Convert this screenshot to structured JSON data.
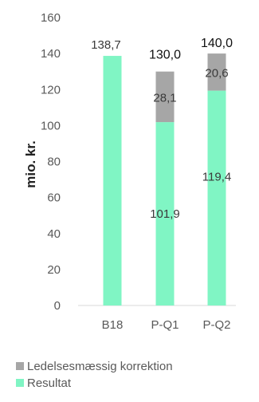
{
  "chart_data": {
    "type": "bar",
    "stacked": true,
    "categories": [
      "B18",
      "P-Q1",
      "P-Q2"
    ],
    "series": [
      {
        "name": "Resultat",
        "color": "#80f5c4",
        "values": [
          138.7,
          101.9,
          119.4
        ],
        "labels": [
          "138,7",
          "101,9",
          "119,4"
        ]
      },
      {
        "name": "Ledelsesmæssig korrektion",
        "color": "#a6a6a6",
        "values": [
          0,
          28.1,
          20.6
        ],
        "labels": [
          "",
          "28,1",
          "20,6"
        ]
      }
    ],
    "totals": [
      null,
      130.0,
      140.0
    ],
    "total_labels": [
      "",
      "130,0",
      "140,0"
    ],
    "title": "",
    "xlabel": "",
    "ylabel": "mio. kr.",
    "ylim": [
      0,
      160
    ],
    "yticks": [
      0,
      20,
      40,
      60,
      80,
      100,
      120,
      140,
      160
    ],
    "grid": false,
    "legend_position": "bottom-left"
  }
}
